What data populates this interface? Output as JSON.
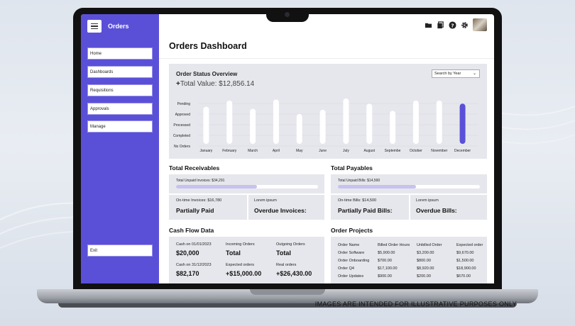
{
  "app": {
    "title": "Orders"
  },
  "sidebar": {
    "items": [
      {
        "label": "Home"
      },
      {
        "label": "Dashboards"
      },
      {
        "label": "Requisitions"
      },
      {
        "label": "Approvals"
      },
      {
        "label": "Manage"
      }
    ],
    "exit_label": "Exit"
  },
  "topbar": {
    "icons": [
      "folder-icon",
      "copy-icon",
      "help-icon",
      "gear-icon",
      "avatar"
    ]
  },
  "page": {
    "title": "Orders Dashboard"
  },
  "overview": {
    "title": "Order Status Overview",
    "total_prefix": "+",
    "total_value": "Total Value: $12,856.14",
    "select_value": "Search by Year"
  },
  "chart_data": {
    "type": "bar",
    "title": "Order Status Overview",
    "y_categories": [
      "Pending",
      "Approved",
      "Processed",
      "Completed",
      "No Orders"
    ],
    "categories": [
      "January",
      "February",
      "March",
      "April",
      "May",
      "June",
      "July",
      "August",
      "Septembe",
      "October",
      "November",
      "December"
    ],
    "values": [
      3.6,
      4.2,
      3.4,
      4.3,
      2.9,
      3.3,
      4.4,
      3.9,
      3.2,
      4.2,
      4.2,
      3.9
    ],
    "ylim": [
      0,
      4.6
    ],
    "highlight": "December",
    "bar_color": "#ffffff",
    "highlight_color": "#5a50d8",
    "grid": true
  },
  "receivables": {
    "title": "Total Receivables",
    "unpaid_label": "Total Unpaid Invoices: $34,291",
    "progress": 0.57,
    "left_small": "On-time Invoices: $16,780",
    "left_big": "Partially Paid",
    "right_small": "Lorem ipsum",
    "right_big": "Overdue Invoices:"
  },
  "payables": {
    "title": "Total Payables",
    "unpaid_label": "Total Unpaid Bills: $14,500",
    "progress": 0.55,
    "left_small": "On-time Bills: $14,500",
    "left_big": "Partially Paid Bills:",
    "right_small": "Lorem ipsum",
    "right_big": "Overdue Bills:"
  },
  "cashflow": {
    "title": "Cash Flow Data",
    "cash_start_label": "Cash on 01/01/2023",
    "cash_start_value": "$20,000",
    "incoming_label": "Incoming Orders",
    "incoming_value": "Total",
    "outgoing_label": "Outgoing Orders",
    "outgoing_value": "Total",
    "cash_end_label": "Cash on 31/12/2023",
    "cash_end_value": "$82,170",
    "expected_label": "Expected orders",
    "expected_value": "+$15,000.00",
    "real_label": "Real orders",
    "real_value": "+$26,430.00"
  },
  "projects": {
    "title": "Order Projects",
    "headers": [
      "Order Name",
      "Billed Order Hours",
      "Unbilled Order",
      "Expected order"
    ],
    "rows": [
      [
        "Order Software",
        "$5,900.00",
        "$3,200.00",
        "$9,670.00"
      ],
      [
        "Order Onboarding",
        "$700.00",
        "$800.00",
        "$1,500.00"
      ],
      [
        "Order Q4",
        "$17,100.00",
        "$8,920.00",
        "$18,900.00"
      ],
      [
        "Order Updates",
        "$900.00",
        "$200.00",
        "$670.00"
      ]
    ]
  },
  "footer": {
    "disclaimer": "IMAGES ARE INTENDED FOR ILLUSTRATIVE PURPOSES ONLY"
  }
}
